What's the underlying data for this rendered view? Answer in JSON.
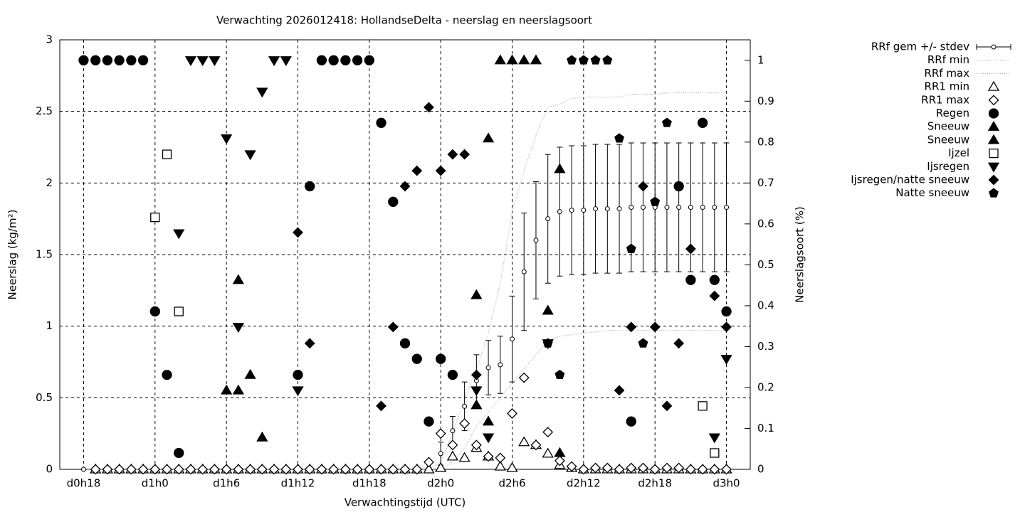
{
  "chart_data": {
    "type": "line",
    "title": "Verwachting 2026012418: HollandseDelta - neerslag en neerslagsoort",
    "x_label": "Verwachtingstijd (UTC)",
    "y_label": "Neerslag (kg/m²)",
    "y2_label": "Neerslagsoort (%)",
    "xlim": [
      16,
      74
    ],
    "ylim": [
      0,
      3
    ],
    "y2lim": [
      0,
      1.05
    ],
    "xticks": [
      {
        "value": 18,
        "label": "d0h18"
      },
      {
        "value": 24,
        "label": "d1h0"
      },
      {
        "value": 30,
        "label": "d1h6"
      },
      {
        "value": 36,
        "label": "d1h12"
      },
      {
        "value": 42,
        "label": "d1h18"
      },
      {
        "value": 48,
        "label": "d2h0"
      },
      {
        "value": 54,
        "label": "d2h6"
      },
      {
        "value": 60,
        "label": "d2h12"
      },
      {
        "value": 66,
        "label": "d2h18"
      },
      {
        "value": 72,
        "label": "d3h0"
      }
    ],
    "yticks": [
      0,
      0.5,
      1,
      1.5,
      2,
      2.5,
      3
    ],
    "y2ticks": [
      0,
      0.1,
      0.2,
      0.3,
      0.4,
      0.5,
      0.6,
      0.7,
      0.8,
      0.9,
      1
    ],
    "grid": true,
    "legend": "outside-right",
    "x": [
      18,
      19,
      20,
      21,
      22,
      23,
      24,
      25,
      26,
      27,
      28,
      29,
      30,
      31,
      32,
      33,
      34,
      35,
      36,
      37,
      38,
      39,
      40,
      41,
      42,
      43,
      44,
      45,
      46,
      47,
      48,
      49,
      50,
      51,
      52,
      53,
      54,
      55,
      56,
      57,
      58,
      59,
      60,
      61,
      62,
      63,
      64,
      65,
      66,
      67,
      68,
      69,
      70,
      71,
      72
    ],
    "series": [
      {
        "name": "RRf gem +/- stdev",
        "style": "errorbar",
        "color": "#000000",
        "values": [
          0,
          0,
          0,
          0,
          0,
          0,
          0,
          0,
          0,
          0,
          0,
          0,
          0,
          0,
          0,
          0,
          0,
          0,
          0,
          0,
          0,
          0,
          0,
          0,
          0,
          0,
          0,
          0,
          0,
          0,
          0.11,
          0.27,
          0.44,
          0.62,
          0.71,
          0.73,
          0.91,
          1.38,
          1.6,
          1.75,
          1.8,
          1.81,
          1.81,
          1.82,
          1.82,
          1.82,
          1.83,
          1.83,
          1.83,
          1.83,
          1.83,
          1.83,
          1.83,
          1.83,
          1.83
        ],
        "errors": [
          0,
          0,
          0,
          0,
          0,
          0,
          0,
          0,
          0,
          0,
          0,
          0,
          0,
          0,
          0,
          0,
          0,
          0,
          0,
          0,
          0,
          0,
          0,
          0,
          0,
          0,
          0,
          0,
          0,
          0,
          0.08,
          0.1,
          0.17,
          0.18,
          0.19,
          0.2,
          0.3,
          0.41,
          0.41,
          0.45,
          0.45,
          0.45,
          0.45,
          0.45,
          0.45,
          0.45,
          0.45,
          0.45,
          0.45,
          0.45,
          0.45,
          0.45,
          0.45,
          0.45,
          0.45
        ]
      },
      {
        "name": "RRf min",
        "style": "dotted",
        "color": "#b0b0b0",
        "values": [
          0,
          0,
          0,
          0,
          0,
          0,
          0,
          0,
          0,
          0,
          0,
          0,
          0,
          0,
          0,
          0,
          0,
          0,
          0,
          0,
          0,
          0,
          0,
          0,
          0,
          0,
          0,
          0,
          0,
          0,
          0,
          0.05,
          0.15,
          0.3,
          0.4,
          0.5,
          0.6,
          0.7,
          0.8,
          0.9,
          0.93,
          0.94,
          0.95,
          0.96,
          0.97,
          0.97,
          0.97,
          0.97,
          0.97,
          0.97,
          0.97,
          0.97,
          0.97,
          0.97,
          0.97
        ]
      },
      {
        "name": "RRf max",
        "style": "dotted",
        "color": "#b0b0b0",
        "values": [
          0,
          0,
          0,
          0,
          0,
          0,
          0,
          0,
          0,
          0,
          0,
          0,
          0,
          0,
          0,
          0,
          0,
          0,
          0,
          0,
          0,
          0,
          0,
          0,
          0,
          0,
          0,
          0,
          0,
          0,
          0.05,
          0.25,
          0.5,
          0.7,
          0.95,
          1.3,
          1.8,
          2.09,
          2.33,
          2.53,
          2.55,
          2.59,
          2.6,
          2.6,
          2.6,
          2.6,
          2.62,
          2.62,
          2.62,
          2.63,
          2.63,
          2.63,
          2.63,
          2.63,
          2.63
        ]
      },
      {
        "name": "RR1 min",
        "style": "marker",
        "marker": "triangle-up",
        "filled": false,
        "color": "#000000",
        "values": [
          null,
          0,
          0,
          0,
          0,
          0,
          0,
          0,
          0,
          0,
          0,
          0,
          0,
          0,
          0,
          0,
          0,
          0,
          0,
          0,
          0,
          0,
          0,
          0,
          0,
          0,
          0,
          0,
          0,
          0,
          0.01,
          0.09,
          0.08,
          0.15,
          0.09,
          0.02,
          0.01,
          0.19,
          0.17,
          0.11,
          0.03,
          0.01,
          0,
          0,
          0,
          0,
          0,
          0,
          0,
          0,
          0,
          0,
          0,
          0,
          0
        ]
      },
      {
        "name": "RR1 max",
        "style": "marker",
        "marker": "diamond",
        "filled": false,
        "color": "#000000",
        "values": [
          null,
          0,
          0,
          0,
          0,
          0,
          0,
          0,
          0,
          0,
          0,
          0,
          0,
          0,
          0,
          0,
          0,
          0,
          0,
          0,
          0,
          0,
          0,
          0,
          0,
          0,
          0,
          0,
          0,
          0.05,
          0.25,
          0.17,
          0.32,
          0.17,
          0.09,
          0.08,
          0.39,
          0.64,
          0.17,
          0.26,
          0.06,
          0.02,
          0,
          0.01,
          0.01,
          0,
          0.01,
          0.01,
          0,
          0.01,
          0.01,
          0,
          0,
          0,
          0
        ]
      },
      {
        "name": "Regen",
        "style": "marker",
        "marker": "circle",
        "filled": true,
        "color": "#000000",
        "axis": "y2",
        "x": [
          18,
          19,
          20,
          21,
          22,
          23,
          24,
          25,
          26,
          36,
          37,
          38,
          39,
          40,
          41,
          42,
          43,
          44,
          45,
          46,
          47,
          48,
          49,
          64,
          68,
          69,
          70,
          71,
          72
        ],
        "values": [
          1,
          1,
          1,
          1,
          1,
          1,
          0.386,
          0.231,
          0.04,
          0.231,
          0.692,
          1,
          1,
          1,
          1,
          1,
          0.847,
          0.654,
          0.308,
          0.27,
          0.117,
          0.27,
          0.231,
          0.117,
          0.692,
          0.463,
          0.847,
          0.463,
          0.386
        ]
      },
      {
        "name": "Sneeuw",
        "style": "marker",
        "marker": "triangle-up",
        "filled": true,
        "color": "#000000",
        "axis": "y2",
        "x": [
          30,
          31,
          32,
          33,
          51,
          52,
          53,
          54,
          55,
          56,
          57,
          58
        ],
        "values": [
          0.193,
          0.463,
          0.231,
          0.078,
          0.426,
          0.809,
          1,
          1,
          1,
          1,
          0.388,
          0.734
        ]
      },
      {
        "name": "Sneeuw",
        "style": "marker",
        "marker": "triangle-up",
        "filled": true,
        "color": "#000000",
        "axis": "y2",
        "x": [
          31,
          51,
          52,
          58
        ],
        "values": [
          0.193,
          0.157,
          0.117,
          0.04
        ]
      },
      {
        "name": "Ijzel",
        "style": "marker",
        "marker": "square",
        "filled": false,
        "color": "#000000",
        "axis": "y2",
        "x": [
          24,
          25,
          26,
          70,
          71
        ],
        "values": [
          0.616,
          0.77,
          0.386,
          0.155,
          0.04
        ]
      },
      {
        "name": "Ijsregen",
        "style": "marker",
        "marker": "triangle-down",
        "filled": true,
        "color": "#000000",
        "axis": "y2",
        "x": [
          26,
          27,
          28,
          29,
          30,
          31,
          32,
          33,
          34,
          35,
          36,
          51,
          52,
          57,
          71,
          72
        ],
        "values": [
          0.577,
          1,
          1,
          1,
          0.809,
          0.348,
          0.77,
          0.923,
          1,
          1,
          0.193,
          0.193,
          0.078,
          0.308,
          0.078,
          0.27
        ]
      },
      {
        "name": "Ijsregen/natte sneeuw",
        "style": "marker",
        "marker": "diamond",
        "filled": true,
        "color": "#000000",
        "axis": "y2",
        "x": [
          36,
          37,
          43,
          44,
          45,
          46,
          47,
          48,
          49,
          50,
          51,
          63,
          64,
          65,
          66,
          67,
          68,
          69,
          71,
          72
        ],
        "values": [
          0.579,
          0.308,
          0.155,
          0.348,
          0.692,
          0.73,
          0.885,
          0.73,
          0.77,
          0.77,
          0.231,
          0.193,
          0.348,
          0.692,
          0.348,
          0.155,
          0.308,
          0.539,
          0.424,
          0.348
        ]
      },
      {
        "name": "Natte sneeuw",
        "style": "marker",
        "marker": "pentagon",
        "filled": true,
        "color": "#000000",
        "axis": "y2",
        "x": [
          57,
          58,
          59,
          60,
          61,
          62,
          63,
          64,
          65,
          66,
          67
        ],
        "values": [
          0.308,
          0.231,
          1,
          1,
          1,
          1,
          0.809,
          0.539,
          0.308,
          0.654,
          0.847
        ]
      }
    ]
  }
}
